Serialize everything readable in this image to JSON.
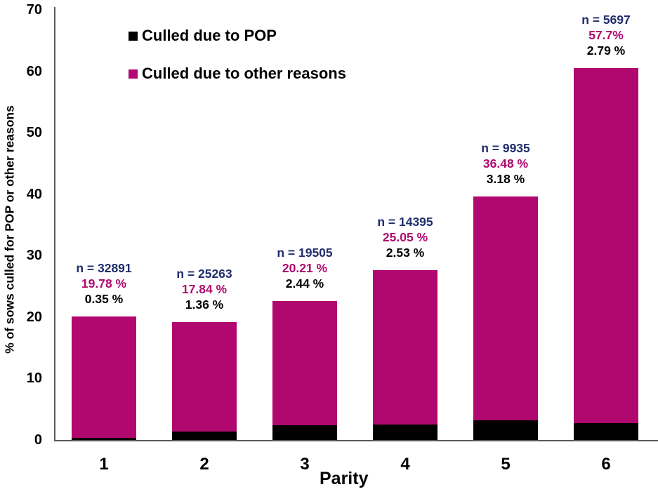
{
  "chart_data": {
    "type": "bar",
    "stacked": true,
    "title": "",
    "xlabel": "Parity",
    "ylabel": "% of sows culled for POP or other reasons",
    "ylim": [
      0,
      70
    ],
    "yticks": [
      0,
      10,
      20,
      30,
      40,
      50,
      60,
      70
    ],
    "categories": [
      "1",
      "2",
      "3",
      "4",
      "5",
      "6"
    ],
    "series": [
      {
        "name": "Culled due to POP",
        "color": "#000000",
        "values": [
          0.35,
          1.36,
          2.44,
          2.53,
          3.18,
          2.79
        ]
      },
      {
        "name": "Culled due to other reasons",
        "color": "#B0086E",
        "values": [
          19.78,
          17.84,
          20.21,
          25.05,
          36.48,
          57.7
        ]
      }
    ],
    "annotations": [
      {
        "category": "1",
        "n": "n = 32891",
        "other": "19.78 %",
        "pop": "0.35 %"
      },
      {
        "category": "2",
        "n": "n = 25263",
        "other": "17.84 %",
        "pop": "1.36 %"
      },
      {
        "category": "3",
        "n": "n = 19505",
        "other": "20.21 %",
        "pop": "2.44 %"
      },
      {
        "category": "4",
        "n": "n = 14395",
        "other": "25.05 %",
        "pop": "2.53 %"
      },
      {
        "category": "5",
        "n": "n = 9935",
        "other": "36.48 %",
        "pop": "3.18 %"
      },
      {
        "category": "6",
        "n": "n = 5697",
        "other": "57.7%",
        "pop": "2.79 %"
      }
    ],
    "legend": {
      "position": "upper-left",
      "entries": [
        "Culled due to POP",
        "Culled due to other reasons"
      ]
    },
    "grid": false
  },
  "colors": {
    "pop": "#000000",
    "other": "#B0086E",
    "n_label": "#1F2D6B",
    "other_label": "#B0086E",
    "pop_label": "#000000",
    "axis": "#595959"
  },
  "labels": {
    "ylabel": "% of sows culled for POP or other reasons",
    "xlabel": "Parity",
    "legend_pop": "Culled due to POP",
    "legend_other": "Culled due to other reasons"
  }
}
